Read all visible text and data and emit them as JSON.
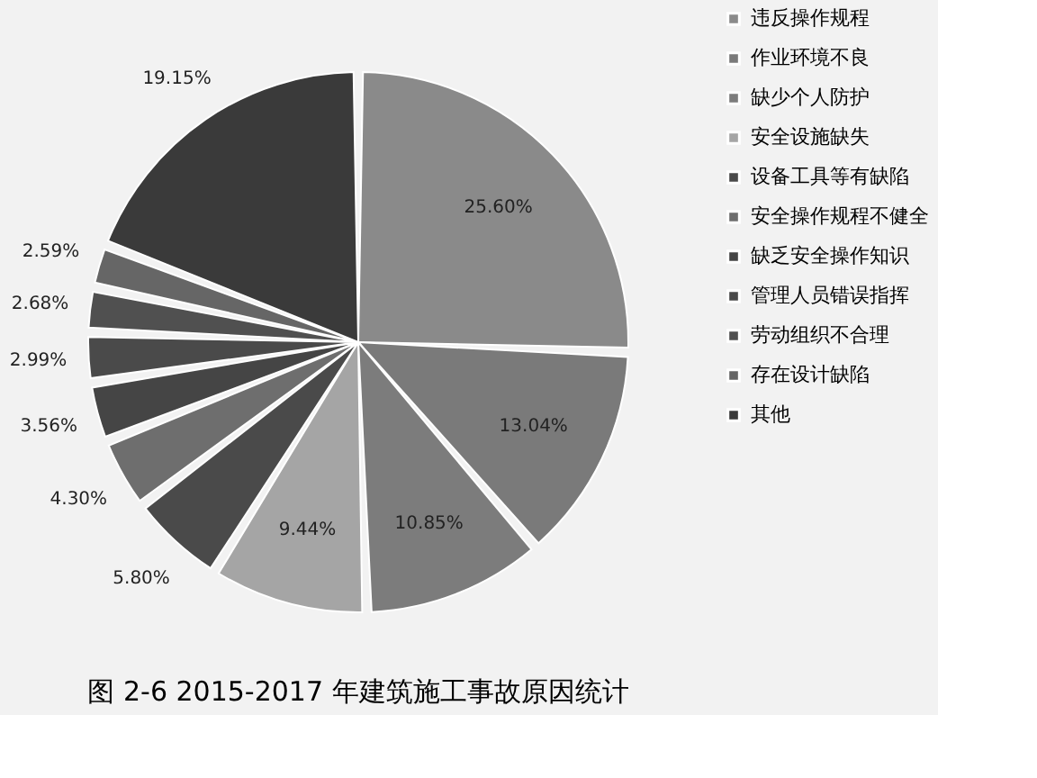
{
  "chart_data": {
    "type": "pie",
    "title": "图 2-6 2015-2017 年建筑施工事故原因统计",
    "categories": [
      "违反操作规程",
      "作业环境不良",
      "缺少个人防护",
      "安全设施缺失",
      "设备工具等有缺陷",
      "安全操作规程不健全",
      "缺乏安全操作知识",
      "管理人员错误指挥",
      "劳动组织不合理",
      "存在设计缺陷",
      "其他"
    ],
    "values": [
      25.6,
      13.04,
      10.85,
      9.44,
      5.8,
      4.3,
      3.56,
      2.99,
      2.68,
      2.59,
      19.15
    ],
    "value_labels": [
      "25.60%",
      "13.04%",
      "10.85%",
      "9.44%",
      "5.80%",
      "4.30%",
      "3.56%",
      "2.99%",
      "2.68%",
      "2.59%",
      "19.15%"
    ],
    "colors": [
      "#8a8a8a",
      "#7a7a7a",
      "#7c7c7c",
      "#a5a5a5",
      "#4a4a4a",
      "#6e6e6e",
      "#454545",
      "#4a4a4a",
      "#505050",
      "#666666",
      "#3a3a3a"
    ],
    "legend": "right"
  }
}
